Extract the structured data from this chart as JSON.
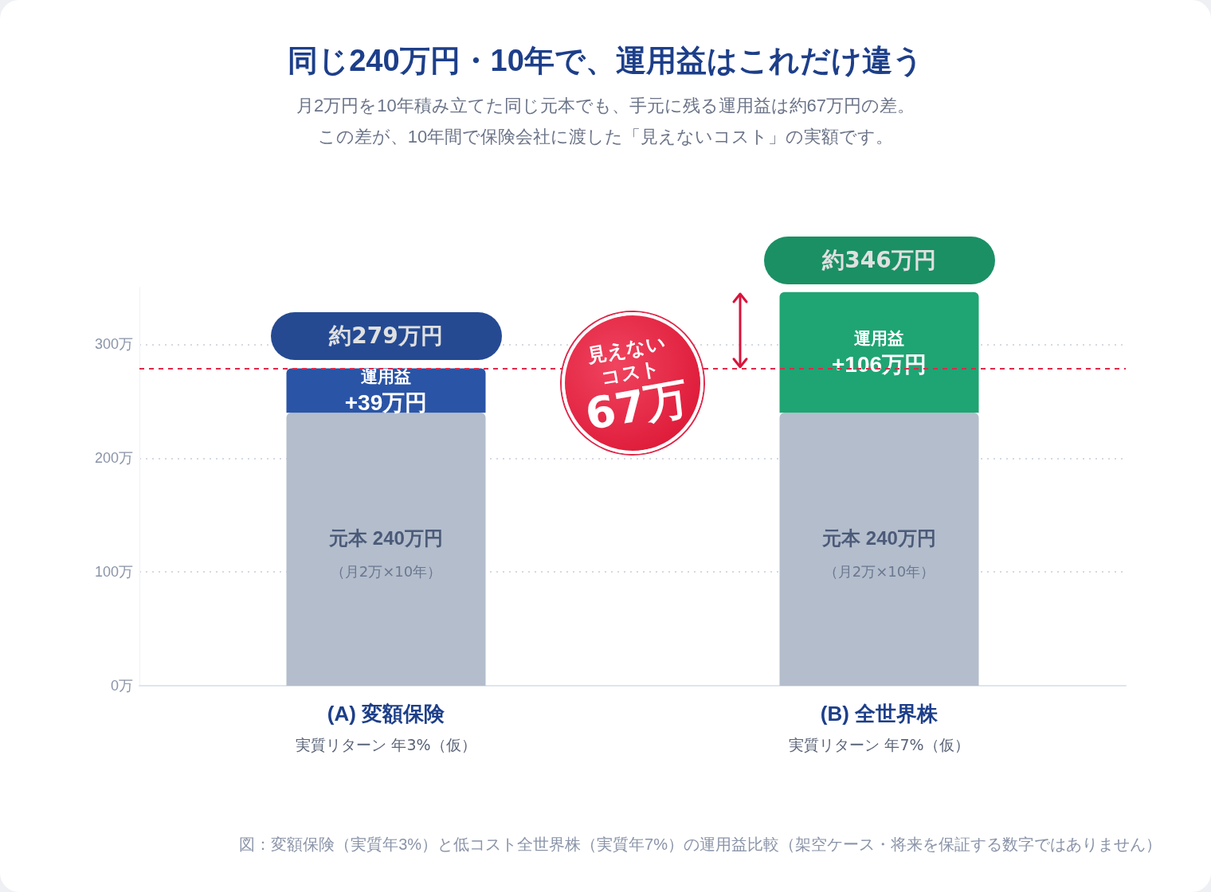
{
  "chart_data": {
    "type": "bar",
    "stacked": true,
    "title": "同じ240万円・10年で、運用益はこれだけ違う",
    "subtitle": "月2万円を10年積み立てた同じ元本でも、手元に残る運用益は約67万円の差。",
    "categories": [
      "(A) 変額保険",
      "(B) 全世界株"
    ],
    "series": [
      {
        "name": "元本",
        "color": "#b3bdcc",
        "values": [
          240,
          240
        ],
        "value_labels": [
          "240万円",
          "240万円"
        ]
      },
      {
        "name": "運用益",
        "colors": [
          "#2a54a6",
          "#1fa473"
        ],
        "values": [
          39,
          106
        ],
        "value_labels": [
          "+39万円",
          "+106万円"
        ]
      }
    ],
    "totals": [
      "約279万円",
      "約346万円"
    ],
    "ylim": [
      0,
      350
    ],
    "yticks": [
      {
        "value": 0,
        "label": "0万"
      },
      {
        "value": 100,
        "label": "100万"
      },
      {
        "value": 200,
        "label": "200万"
      },
      {
        "value": 300,
        "label": "300万"
      }
    ],
    "grid": "y",
    "ref_lines": [
      {
        "axis": "y",
        "value": 279,
        "color": "#e0284a",
        "line_style": "dashed"
      }
    ],
    "annotations": [
      "この差が、10年間で保険会社に渡した「見えないコスト」の実額です。",
      "見えない",
      "コスト",
      "67万",
      "図：変額保険（実質年3%）と低コスト全世界株（実質年7%）の運用益比較（架空ケース・将来を保証する数字ではありません）",
      "実質リターン 年3%（仮）",
      "実質リターン 年7%（仮）",
      "（月2万×10年）",
      "（月2万×10年）"
    ]
  }
}
